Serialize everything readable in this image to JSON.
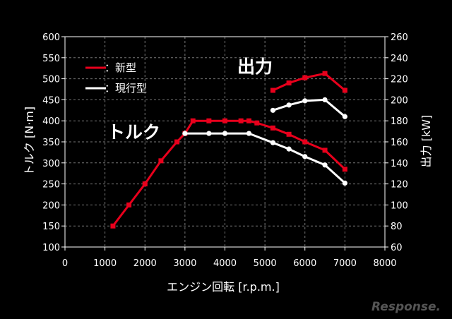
{
  "chart_data": {
    "type": "line",
    "x_axis": {
      "label": "エンジン回転 [r.p.m.]",
      "min": 0,
      "max": 8000,
      "ticks": [
        0,
        1000,
        2000,
        3000,
        4000,
        5000,
        6000,
        7000,
        8000
      ]
    },
    "y_left": {
      "label": "トルク [N·m]",
      "min": 100,
      "max": 600,
      "ticks": [
        100,
        150,
        200,
        250,
        300,
        350,
        400,
        450,
        500,
        550,
        600
      ]
    },
    "y_right": {
      "label": "出力 [kW]",
      "min": 60,
      "max": 260,
      "ticks": [
        60,
        80,
        100,
        120,
        140,
        160,
        180,
        200,
        220,
        240,
        260
      ]
    },
    "grid": true,
    "legend": {
      "position": "top-left",
      "entries": [
        {
          "label": "：新型",
          "color": "#e8001c"
        },
        {
          "label": "：現行型",
          "color": "#ffffff"
        }
      ]
    },
    "annotations": [
      {
        "text": "出力"
      },
      {
        "text": "トルク"
      }
    ],
    "series": [
      {
        "id": "torque_new",
        "axis": "left",
        "color": "#e8001c",
        "marker": "square",
        "x": [
          1200,
          1600,
          2000,
          2400,
          2800,
          3000,
          3200,
          3600,
          4000,
          4400,
          4600,
          4800,
          5200,
          5600,
          6000,
          6500,
          7000
        ],
        "y": [
          150,
          200,
          250,
          305,
          350,
          370,
          400,
          400,
          400,
          400,
          400,
          395,
          383,
          368,
          350,
          330,
          285
        ]
      },
      {
        "id": "torque_current",
        "axis": "left",
        "color": "#ffffff",
        "marker": "circle",
        "x": [
          3000,
          3600,
          4000,
          4600,
          5200,
          5600,
          6000,
          6500,
          7000
        ],
        "y": [
          370,
          370,
          370,
          370,
          348,
          333,
          315,
          295,
          252
        ]
      },
      {
        "id": "power_new",
        "axis": "right",
        "color": "#e8001c",
        "marker": "square",
        "x": [
          5200,
          5600,
          6000,
          6500,
          7000
        ],
        "y": [
          209,
          216,
          221,
          225,
          209
        ]
      },
      {
        "id": "power_current",
        "axis": "right",
        "color": "#ffffff",
        "marker": "circle",
        "x": [
          5200,
          5600,
          6000,
          6500,
          7000
        ],
        "y": [
          190,
          195,
          199,
          200,
          184
        ]
      }
    ]
  },
  "watermark": "Response."
}
